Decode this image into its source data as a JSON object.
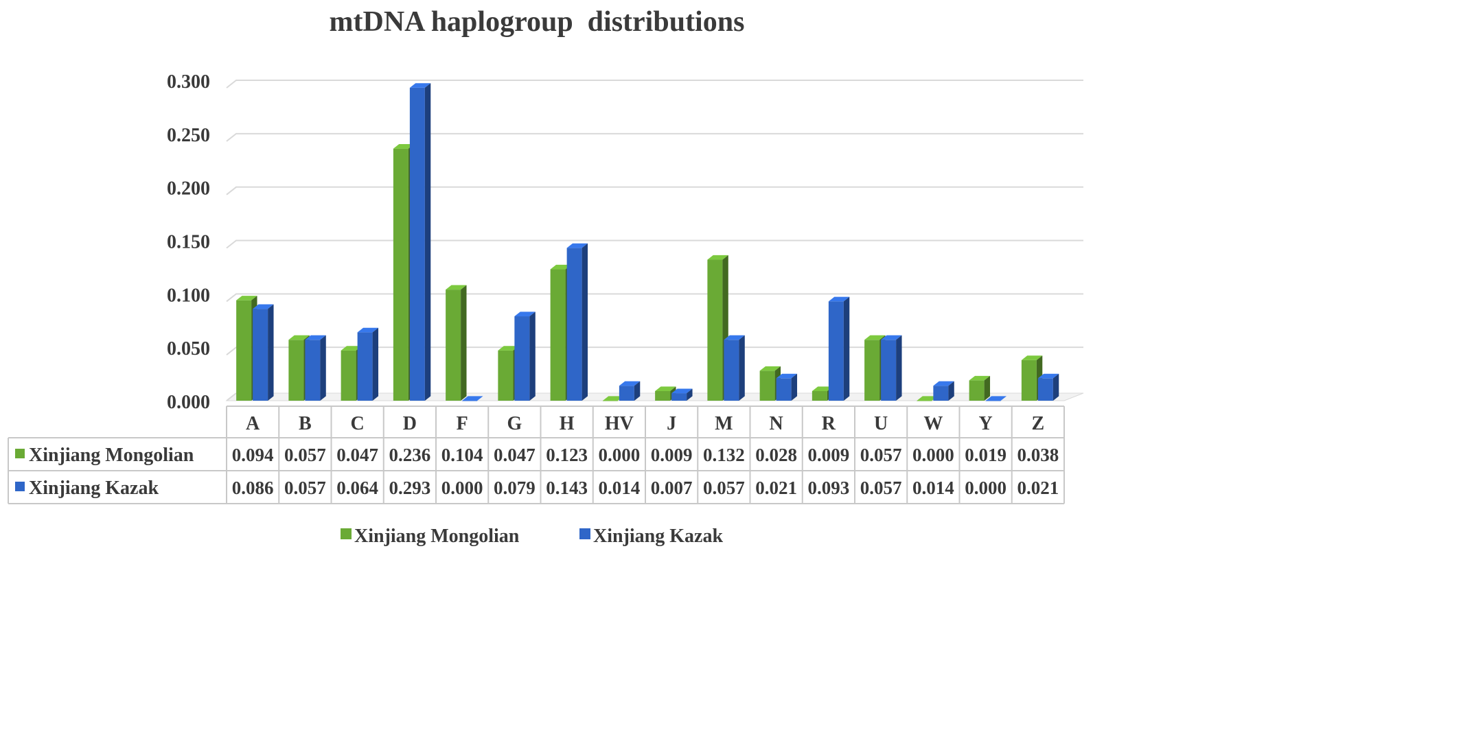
{
  "chart_data": {
    "type": "bar",
    "title": "mtDNA haplogroup  distributions",
    "categories": [
      "A",
      "B",
      "C",
      "D",
      "F",
      "G",
      "H",
      "HV",
      "J",
      "M",
      "N",
      "R",
      "U",
      "W",
      "Y",
      "Z"
    ],
    "series": [
      {
        "name": "Xinjiang Mongolian",
        "color": "#6aaa35",
        "values": [
          0.094,
          0.057,
          0.047,
          0.236,
          0.104,
          0.047,
          0.123,
          0.0,
          0.009,
          0.132,
          0.028,
          0.009,
          0.057,
          0.0,
          0.019,
          0.038
        ],
        "labels": [
          "0.094",
          "0.057",
          "0.047",
          "0.236",
          "0.104",
          "0.047",
          "0.123",
          "0.000",
          "0.009",
          "0.132",
          "0.028",
          "0.009",
          "0.057",
          "0.000",
          "0.019",
          "0.038"
        ]
      },
      {
        "name": "Xinjiang Kazak",
        "color": "#2f66c8",
        "values": [
          0.086,
          0.057,
          0.064,
          0.293,
          0.0,
          0.079,
          0.143,
          0.014,
          0.007,
          0.057,
          0.021,
          0.093,
          0.057,
          0.014,
          0.0,
          0.021
        ],
        "labels": [
          "0.086",
          "0.057",
          "0.064",
          "0.293",
          "0.000",
          "0.079",
          "0.143",
          "0.014",
          "0.007",
          "0.057",
          "0.021",
          "0.093",
          "0.057",
          "0.014",
          "0.000",
          "0.021"
        ]
      }
    ],
    "ylim": [
      0,
      0.3
    ],
    "yticks": [
      "0.000",
      "0.050",
      "0.100",
      "0.150",
      "0.200",
      "0.250",
      "0.300"
    ],
    "grid": true,
    "legend_position": "bottom",
    "data_table": true
  }
}
